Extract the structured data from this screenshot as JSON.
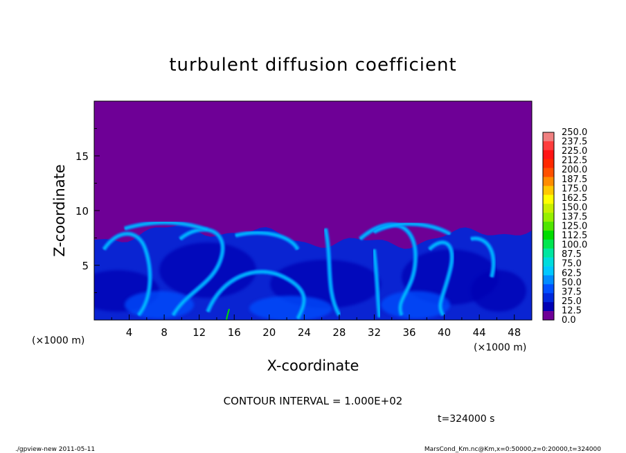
{
  "chart_data": {
    "type": "heatmap",
    "title": "turbulent diffusion coefficient",
    "xlabel": "X-coordinate",
    "ylabel": "Z-coordinate",
    "x_units": "(×1000 m)",
    "y_units": "(×1000 m)",
    "xlim": [
      0,
      50
    ],
    "ylim": [
      0,
      20
    ],
    "x_ticks": [
      "4",
      "8",
      "12",
      "16",
      "20",
      "24",
      "28",
      "32",
      "36",
      "40",
      "44",
      "48"
    ],
    "y_ticks": [
      "5",
      "10",
      "15"
    ],
    "colorbar_labels": [
      "250.0",
      "237.5",
      "225.0",
      "212.5",
      "200.0",
      "187.5",
      "175.0",
      "162.5",
      "150.0",
      "137.5",
      "125.0",
      "112.5",
      "100.0",
      "87.5",
      "75.0",
      "62.5",
      "50.0",
      "37.5",
      "25.0",
      "12.5",
      "0.0"
    ],
    "colorbar_colors": [
      "#f08080",
      "#ff3c3c",
      "#ff1414",
      "#ff2800",
      "#ff5000",
      "#ff8c00",
      "#ffc800",
      "#ffff00",
      "#c8f000",
      "#96f000",
      "#50e600",
      "#00dc00",
      "#00e650",
      "#00e6a0",
      "#00dcdc",
      "#00c8ff",
      "#008cff",
      "#0050ff",
      "#0028dc",
      "#0000b4",
      "#6e0096"
    ],
    "background_color": "#6e0096",
    "contour_interval": "CONTOUR INTERVAL = 1.000E+02",
    "time_label": "t=324000 s",
    "turbulent_layer_top_km": 8.5,
    "footer_left": "./gpview-new   2011-05-11",
    "footer_right": "MarsCond_Km.nc@Km,x=0:50000,z=0:20000,t=324000"
  }
}
